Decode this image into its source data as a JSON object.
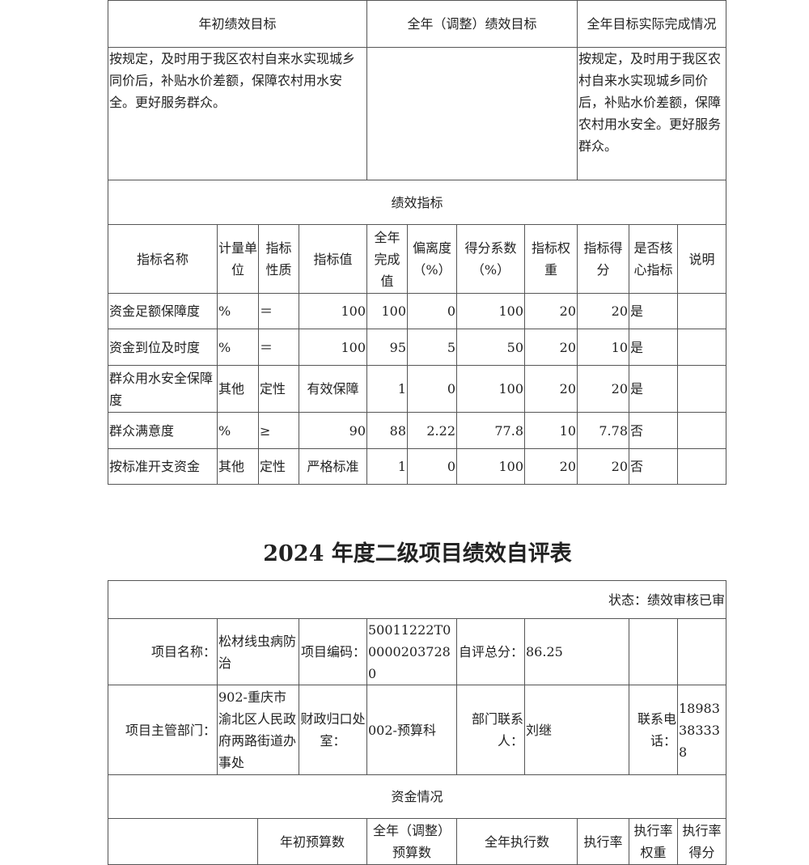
{
  "goals": {
    "h_initial": "年初绩效目标",
    "h_adjusted": "全年（调整）绩效目标",
    "h_actual": "全年目标实际完成情况",
    "initial": "按规定，及时用于我区农村自来水实现城乡同价后，补贴水价差额，保障农村用水安全。更好服务群众。",
    "adjusted": "",
    "actual": "按规定，及时用于我区农村自来水实现城乡同价后，补贴水价差额，保障农村用水安全。更好服务群众。"
  },
  "indicators": {
    "section": "绩效指标",
    "headers": [
      "指标名称",
      "计量单位",
      "指标性质",
      "指标值",
      "全年完成值",
      "偏离度（%）",
      "得分系数（%）",
      "指标权重",
      "指标得分",
      "是否核心指标",
      "说明"
    ],
    "rows": [
      [
        "资金足额保障度",
        "%",
        "＝",
        "100",
        "100",
        "0",
        "100",
        "20",
        "20",
        "是",
        ""
      ],
      [
        "资金到位及时度",
        "%",
        "＝",
        "100",
        "95",
        "5",
        "50",
        "20",
        "10",
        "是",
        ""
      ],
      [
        "群众用水安全保障度",
        "其他",
        "定性",
        "有效保障",
        "1",
        "0",
        "100",
        "20",
        "20",
        "是",
        ""
      ],
      [
        "群众满意度",
        "%",
        "≥",
        "90",
        "88",
        "2.22",
        "77.8",
        "10",
        "7.78",
        "否",
        ""
      ],
      [
        "按标准开支资金",
        "其他",
        "定性",
        "严格标准",
        "1",
        "0",
        "100",
        "20",
        "20",
        "否",
        ""
      ]
    ]
  },
  "title": "2024 年度二级项目绩效自评表",
  "form": {
    "status": "状态：绩效审核已审",
    "project_name_label": "项目名称：",
    "project_name": "松材线虫病防治",
    "code_label": "项目编码：",
    "code": "50011222T000002037280",
    "score_label": "自评总分：",
    "score": "86.25",
    "dept_label": "项目主管部门：",
    "dept": "902-重庆市渝北区人民政府两路街道办事处",
    "finance_label": "财政归口处室：",
    "finance": "002-预算科",
    "contact_label": "部门联系人：",
    "contact": "刘继",
    "phone_label": "联系电话：",
    "phone": "18983383338",
    "funds_section": "资金情况",
    "funds_headers": [
      "年初预算数",
      "全年（调整）预算数",
      "全年执行数",
      "执行率",
      "执行率权重",
      "执行率得分"
    ]
  }
}
